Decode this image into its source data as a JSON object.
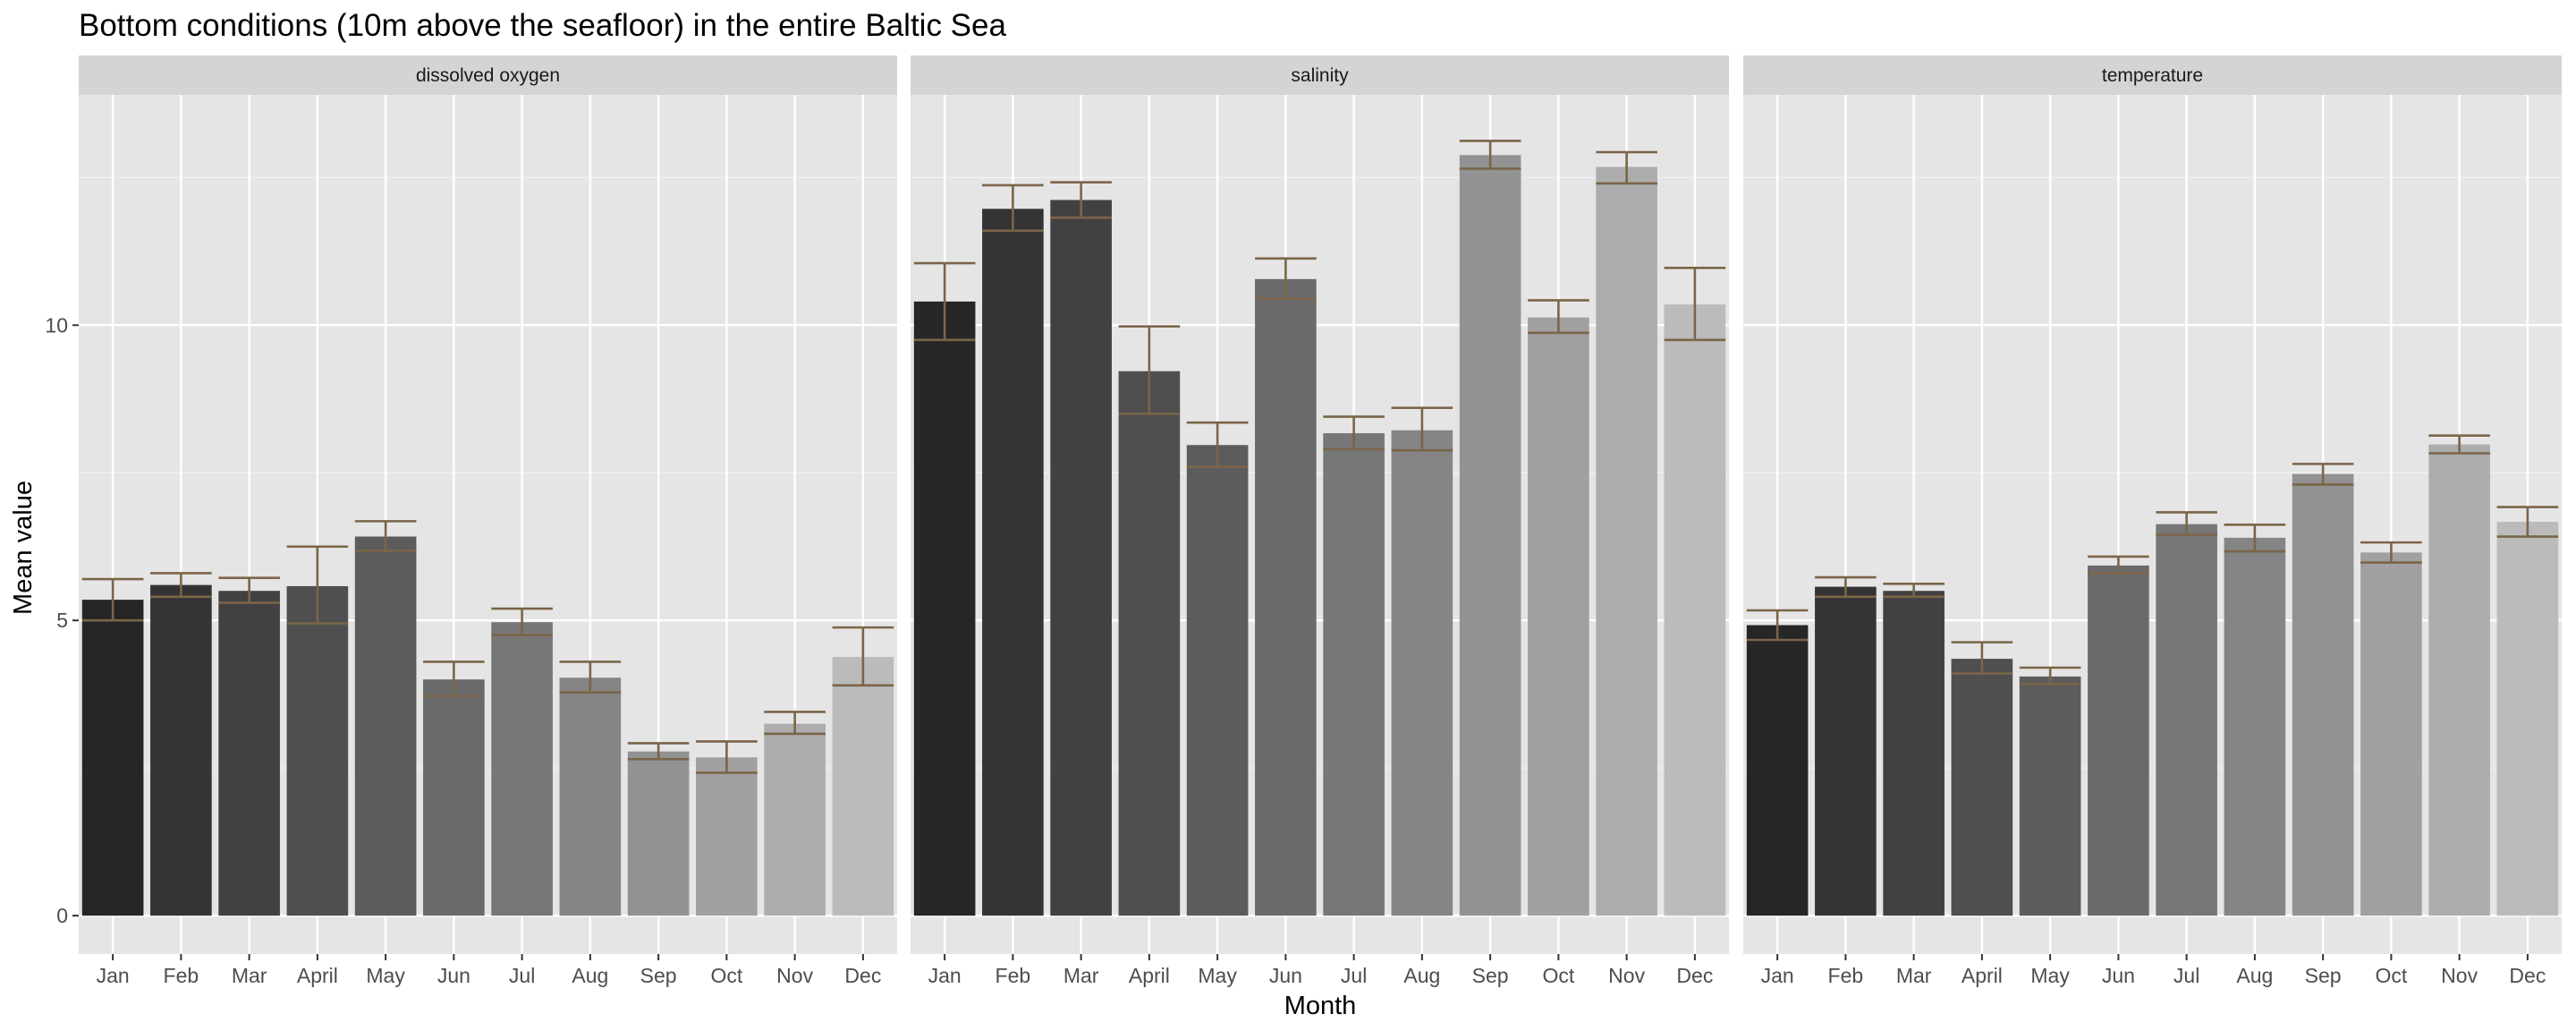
{
  "chart_data": {
    "type": "bar",
    "title": "Bottom conditions (10m above the seafloor) in the entire Baltic Sea",
    "xlabel": "Month",
    "ylabel": "Mean value",
    "categories": [
      "Jan",
      "Feb",
      "Mar",
      "April",
      "May",
      "Jun",
      "Jul",
      "Aug",
      "Sep",
      "Oct",
      "Nov",
      "Dec"
    ],
    "ylim": [
      -0.65,
      13.9
    ],
    "y_ticks": [
      0,
      5,
      10
    ],
    "y_tick_labels": [
      "0",
      "5",
      "10"
    ],
    "grid": true,
    "shared_y_axis": true,
    "bar_fill_gradient": [
      "#262626",
      "#bbbbbb"
    ],
    "error_bar_color": "#7a6548",
    "panel_background": "#e5e5e5",
    "strip_background": "#d4d4d4",
    "facets": [
      {
        "label": "dissolved oxygen",
        "values": [
          5.35,
          5.6,
          5.5,
          5.58,
          6.42,
          4.0,
          4.97,
          4.03,
          2.78,
          2.68,
          3.25,
          4.38
        ],
        "error_low": [
          5.0,
          5.4,
          5.3,
          4.95,
          6.18,
          3.72,
          4.75,
          3.78,
          2.65,
          2.42,
          3.08,
          3.9
        ],
        "error_high": [
          5.7,
          5.8,
          5.72,
          6.25,
          6.68,
          4.3,
          5.2,
          4.3,
          2.92,
          2.95,
          3.45,
          4.88
        ]
      },
      {
        "label": "salinity",
        "values": [
          10.4,
          11.97,
          12.12,
          9.22,
          7.97,
          10.78,
          8.17,
          8.22,
          12.88,
          10.13,
          12.68,
          10.35
        ],
        "error_low": [
          9.75,
          11.6,
          11.82,
          8.5,
          7.6,
          10.45,
          7.9,
          7.88,
          12.65,
          9.87,
          12.4,
          9.75
        ],
        "error_high": [
          11.05,
          12.37,
          12.42,
          9.98,
          8.35,
          11.13,
          8.45,
          8.6,
          13.12,
          10.42,
          12.93,
          10.97
        ]
      },
      {
        "label": "temperature",
        "values": [
          4.92,
          5.57,
          5.5,
          4.35,
          4.05,
          5.93,
          6.63,
          6.4,
          7.48,
          6.15,
          7.98,
          6.67
        ],
        "error_low": [
          4.67,
          5.4,
          5.4,
          4.1,
          3.92,
          5.8,
          6.45,
          6.17,
          7.3,
          5.98,
          7.83,
          6.42
        ],
        "error_high": [
          5.17,
          5.73,
          5.62,
          4.63,
          4.2,
          6.08,
          6.83,
          6.62,
          7.65,
          6.32,
          8.13,
          6.92
        ]
      }
    ]
  }
}
